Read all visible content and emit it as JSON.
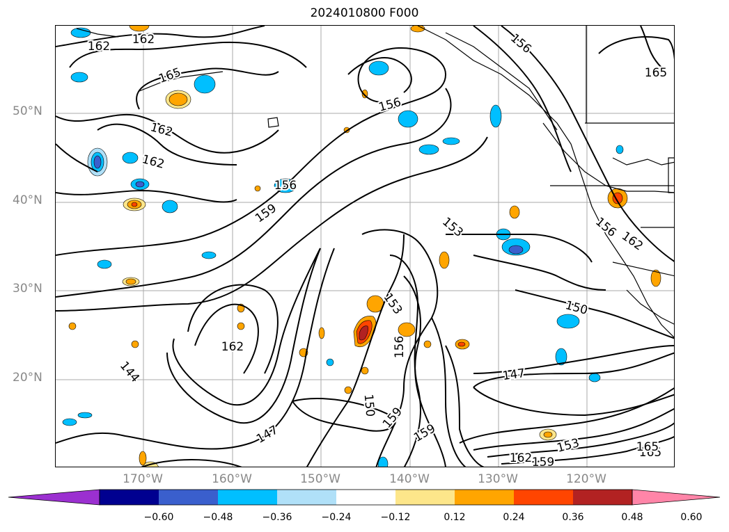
{
  "title": "2024010800 F000",
  "lat_labels": [
    "50°N",
    "40°N",
    "30°N",
    "20°N"
  ],
  "lon_labels": [
    "170°W",
    "160°W",
    "150°W",
    "140°W",
    "130°W",
    "120°W"
  ],
  "colorbar": {
    "ticks": [
      "−0.60",
      "−0.48",
      "−0.36",
      "−0.24",
      "−0.12",
      "0.12",
      "0.24",
      "0.36",
      "0.48",
      "0.60"
    ],
    "colors": [
      "#9b30d0",
      "#000090",
      "#3a5fcd",
      "#00bfff",
      "#b0e0f8",
      "#ffffff",
      "#fde68a",
      "#ffa500",
      "#ff4500",
      "#b22222",
      "#ff85a8"
    ],
    "extend": "both"
  },
  "contour_labels": [
    "162",
    "162",
    "165",
    "162",
    "162",
    "156",
    "159",
    "156",
    "165",
    "156",
    "153",
    "150",
    "153",
    "156",
    "162",
    "144",
    "147",
    "150",
    "159",
    "159",
    "147",
    "153",
    "162",
    "159",
    "165",
    "165",
    "162",
    "156"
  ]
}
